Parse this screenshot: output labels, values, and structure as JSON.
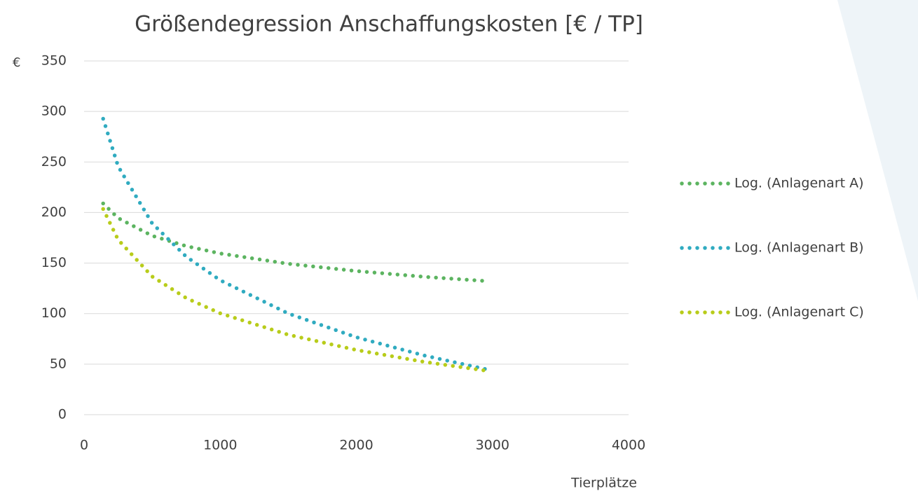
{
  "chart_data": {
    "type": "line",
    "title": "Größendegression Anschaffungskosten [€ / TP]",
    "ylabel": "€",
    "xlabel": "Tierplätze",
    "x": [
      140,
      250,
      500,
      750,
      1000,
      1500,
      2000,
      2500,
      2955
    ],
    "series": [
      {
        "name": "Log. (Anlagenart A)",
        "color": "#5cb460",
        "values": [
          209,
          194.5,
          177,
          166.8,
          159.5,
          149.3,
          142.1,
          136.4,
          132.2
        ]
      },
      {
        "name": "Log. (Anlagenart B)",
        "color": "#30abc0",
        "values": [
          292.8,
          245.7,
          189.3,
          156.4,
          133,
          100.1,
          76.6,
          58.5,
          44.9
        ]
      },
      {
        "name": "Log. (Anlagenart C)",
        "color": "#b8cc1a",
        "values": [
          203.5,
          173.1,
          136.7,
          115.4,
          100.3,
          79.1,
          64,
          52.2,
          43.5
        ]
      }
    ],
    "xlim": [
      0,
      4000
    ],
    "xticks": [
      0,
      1000,
      2000,
      3000,
      4000
    ],
    "ylim": [
      0,
      350
    ],
    "yticks": [
      0,
      50,
      100,
      150,
      200,
      250,
      300,
      350
    ],
    "grid": true,
    "legend": "right"
  }
}
